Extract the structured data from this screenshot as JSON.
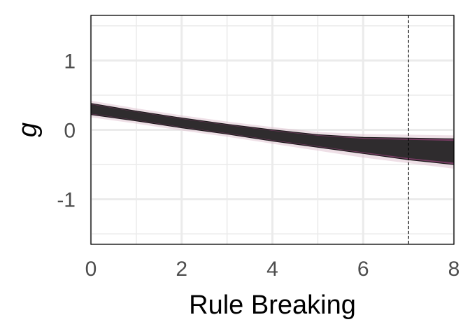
{
  "chart_data": {
    "type": "area",
    "xlabel": "Rule Breaking",
    "ylabel": "g",
    "xlim": [
      0,
      8
    ],
    "ylim": [
      -1.65,
      1.65
    ],
    "x_ticks": [
      0,
      2,
      4,
      6,
      8
    ],
    "x_tick_labels": [
      "0",
      "2",
      "4",
      "6",
      "8"
    ],
    "y_ticks": [
      -1,
      0,
      1
    ],
    "y_tick_labels": [
      "-1",
      "0",
      "1"
    ],
    "grid": true,
    "legend": "none",
    "reference_line": {
      "x": 7,
      "style": "dashed",
      "color": "#000000"
    },
    "colors": {
      "band_dark": "#2b2b2b",
      "band_accent": "#6b2a55",
      "band_halo": "#d9b8c8",
      "grid": "#ebebeb",
      "panel_border": "#000000"
    },
    "series": [
      {
        "x": [
          0,
          1,
          2,
          3,
          4,
          5,
          6,
          7,
          8
        ],
        "center": [
          0.3,
          0.2,
          0.1,
          0.01,
          -0.08,
          -0.16,
          -0.23,
          -0.28,
          -0.32
        ],
        "lower": [
          0.22,
          0.13,
          0.03,
          -0.06,
          -0.16,
          -0.25,
          -0.34,
          -0.43,
          -0.5
        ],
        "upper": [
          0.38,
          0.27,
          0.17,
          0.08,
          0.0,
          -0.07,
          -0.11,
          -0.12,
          -0.13
        ],
        "halo_lower": [
          0.18,
          0.09,
          -0.01,
          -0.1,
          -0.2,
          -0.3,
          -0.4,
          -0.48,
          -0.56
        ],
        "halo_upper": [
          0.42,
          0.31,
          0.21,
          0.12,
          0.04,
          -0.03,
          -0.06,
          -0.07,
          -0.08
        ]
      }
    ]
  }
}
